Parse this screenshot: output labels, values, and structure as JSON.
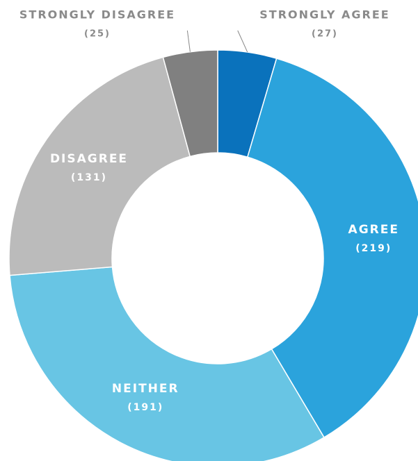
{
  "chart_data": {
    "type": "donut",
    "categories": [
      "STRONGLY AGREE",
      "AGREE",
      "NEITHER",
      "DISAGREE",
      "STRONGLY DISAGREE"
    ],
    "values": [
      27,
      219,
      191,
      131,
      25
    ],
    "value_labels": [
      "(27)",
      "(219)",
      "(191)",
      "(131)",
      "(25)"
    ],
    "colors": [
      "#0a72bc",
      "#2ba3dc",
      "#68c5e4",
      "#bbbbbb",
      "#808080"
    ]
  }
}
